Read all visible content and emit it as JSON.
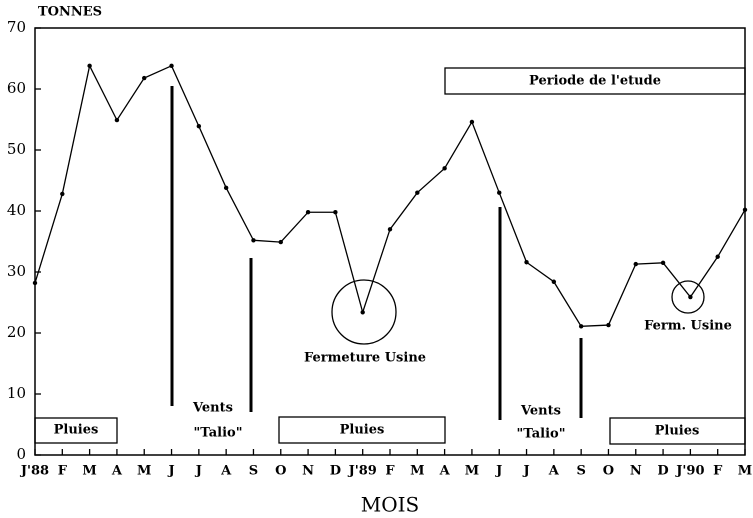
{
  "chart_data": {
    "type": "line",
    "y_label": "TONNES",
    "x_label": "MOIS",
    "categories": [
      "J'88",
      "F",
      "M",
      "A",
      "M",
      "J",
      "J",
      "A",
      "S",
      "O",
      "N",
      "D",
      "J'89",
      "F",
      "M",
      "A",
      "M",
      "J",
      "J",
      "A",
      "S",
      "O",
      "N",
      "D",
      "J'90",
      "F",
      "M"
    ],
    "series": [
      {
        "color": "#000000",
        "values": [
          28.2,
          42.8,
          63.8,
          54.9,
          61.8,
          63.8,
          53.9,
          43.8,
          35.2,
          34.9,
          39.8,
          39.8,
          23.4,
          37.0,
          43.0,
          47.0,
          54.6,
          43.0,
          31.6,
          28.4,
          21.1,
          21.3,
          31.3,
          31.5,
          25.9,
          32.5,
          40.2
        ]
      }
    ],
    "ylim": [
      0,
      70
    ],
    "yticks": [
      0,
      10,
      20,
      30,
      40,
      50,
      60,
      70
    ],
    "grid": false,
    "annotations": [
      "Periode de l'etude",
      "Pluies",
      "Vents",
      "\"Talio\"",
      "Pluies",
      "Fermeture Usine",
      "Vents",
      "\"Talio\"",
      "Pluies",
      "Ferm. Usine"
    ]
  }
}
